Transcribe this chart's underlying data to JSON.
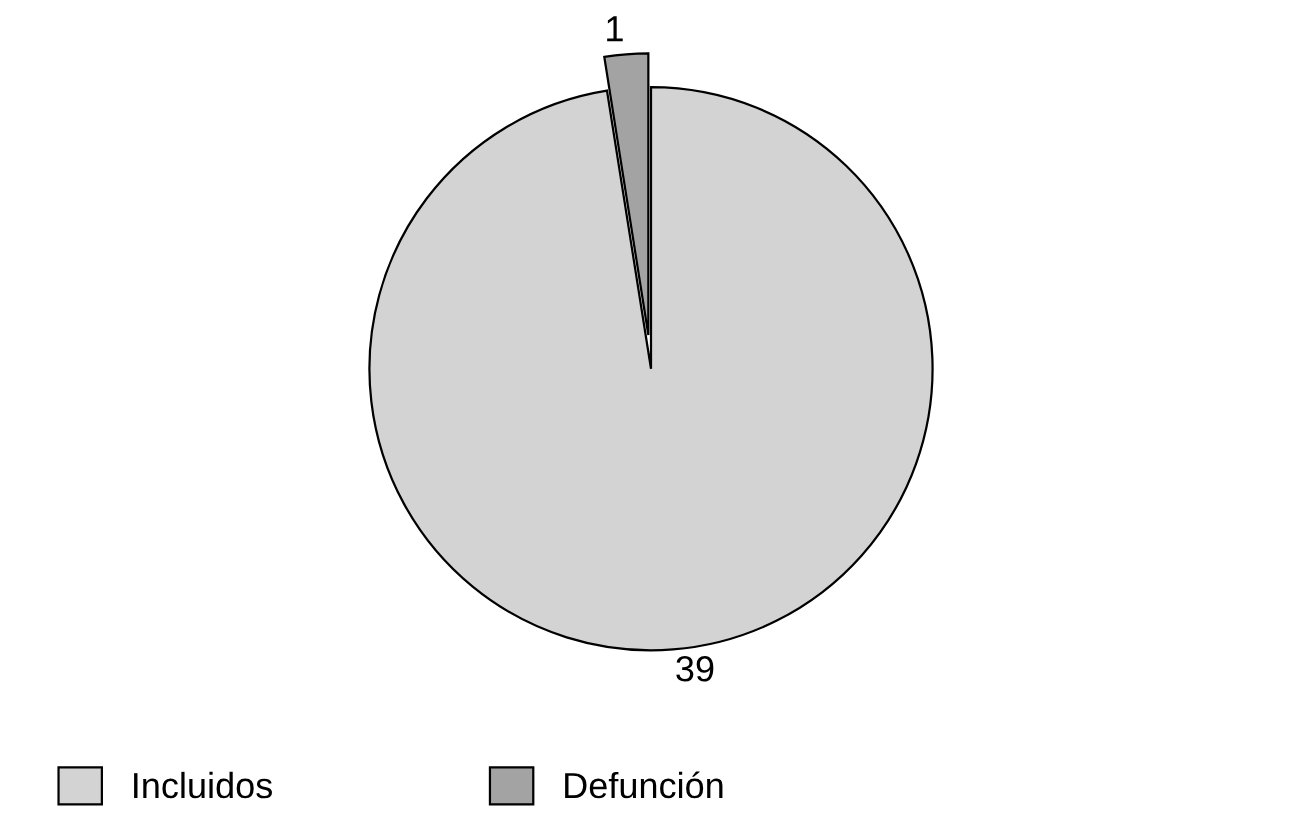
{
  "chart_data": {
    "type": "pie",
    "categories": [
      "Incluidos",
      "Defunción"
    ],
    "values": [
      39,
      1
    ],
    "colors": [
      "#d3d3d3",
      "#a3a3a3"
    ],
    "data_labels": true,
    "legend": "bottom"
  }
}
